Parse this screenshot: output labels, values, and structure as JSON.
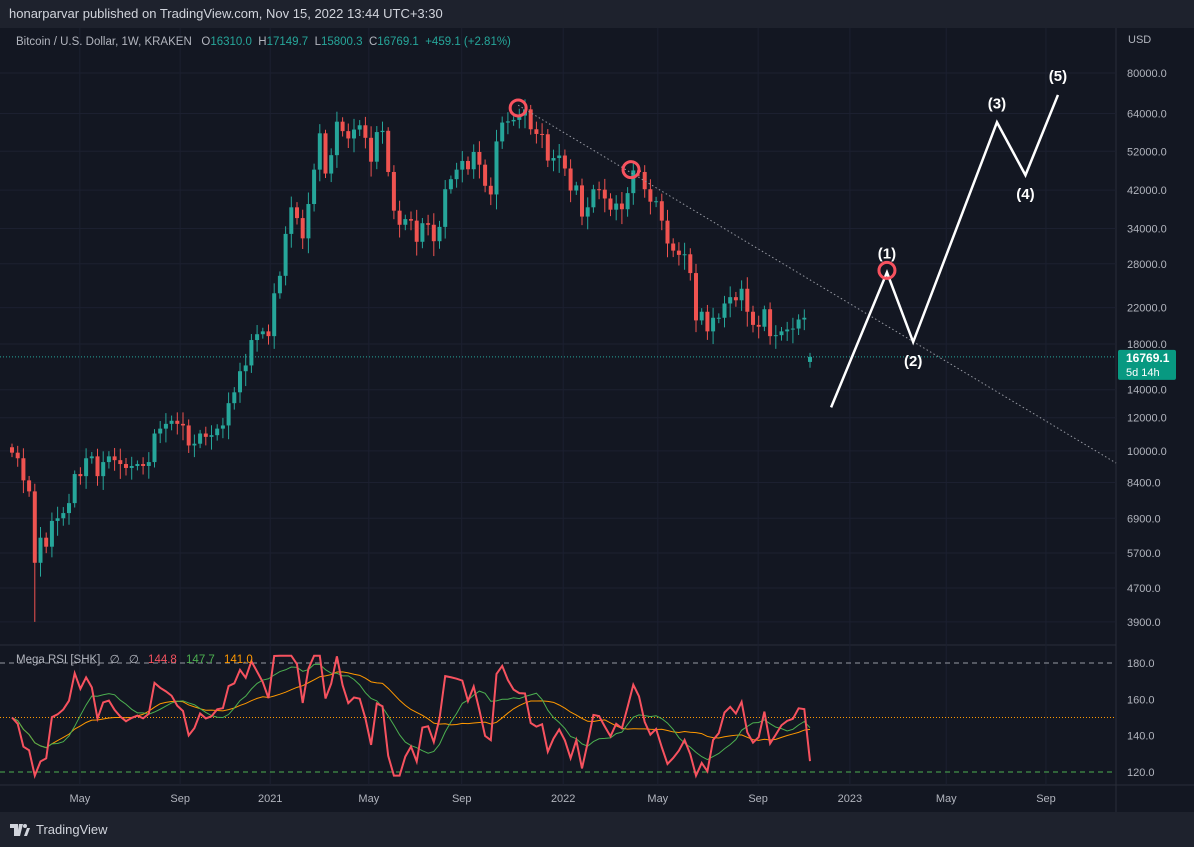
{
  "header": {
    "published": "honarparvar published on TradingView.com, Nov 15, 2022 13:44 UTC+3:30"
  },
  "legend": {
    "symbol": "Bitcoin / U.S. Dollar, 1W, KRAKEN",
    "o_label": "O",
    "open": "16310.0",
    "h_label": "H",
    "high": "17149.7",
    "l_label": "L",
    "low": "15800.3",
    "c_label": "C",
    "close": "16769.1",
    "change": "+459.1 (+2.81%)"
  },
  "rsi_legend": {
    "name": "Mega RSI [SHK]",
    "p1": "∅",
    "p2": "∅",
    "v1": "144.8",
    "v2": "147.7",
    "v3": "141.0"
  },
  "price_axis": {
    "currency": "USD",
    "last_price": "16769.1",
    "countdown": "5d 14h"
  },
  "footer": {
    "brand": "TradingView"
  },
  "colors": {
    "up": "#26a69a",
    "down": "#ef5350",
    "rsi": "#f7525f",
    "signal": "#4caf50",
    "slow": "#ff9800",
    "accent": "#089981"
  },
  "chart_data": {
    "type": "candlestick",
    "scale": "log",
    "ylim": [
      3700,
      90000
    ],
    "first_open": 10200,
    "closes": [
      9900,
      9600,
      8500,
      8000,
      5400,
      6200,
      5900,
      6800,
      6900,
      7100,
      7500,
      8800,
      8700,
      9600,
      9700,
      8700,
      9400,
      9700,
      9500,
      9300,
      9100,
      9200,
      9300,
      9200,
      9400,
      11000,
      11300,
      11600,
      11800,
      11600,
      11500,
      10300,
      10400,
      11000,
      10800,
      10900,
      11300,
      11500,
      13000,
      13800,
      15500,
      16000,
      18400,
      19000,
      19300,
      18800,
      23800,
      26200,
      33000,
      38200,
      36000,
      32200,
      38900,
      47000,
      57400,
      46000,
      50900,
      61200,
      58100,
      55800,
      58600,
      60000,
      56000,
      49100,
      57800,
      58200,
      46400,
      37500,
      34700,
      35800,
      35500,
      31600,
      35000,
      34700,
      31700,
      34300,
      42200,
      44600,
      47000,
      49300,
      47100,
      51800,
      48300,
      43000,
      41000,
      54900,
      60900,
      61300,
      61800,
      63300,
      65500,
      58700,
      57200,
      57100,
      49400,
      50100,
      50800,
      47300,
      41900,
      43100,
      36300,
      38200,
      42200,
      42100,
      40100,
      37700,
      39000,
      37800,
      41300,
      46800,
      46400,
      42200,
      39400,
      39500,
      35500,
      31300,
      30100,
      29400,
      29500,
      26600,
      20500,
      21500,
      19300,
      20800,
      20800,
      22500,
      23300,
      22900,
      24400,
      21500,
      20000,
      19800,
      21800,
      18800,
      18900,
      19300,
      19500,
      19600,
      20600,
      20800,
      16310
    ],
    "last_bar": {
      "open": 16310,
      "high": 17149.7,
      "low": 15800.3,
      "close": 16769.1
    },
    "price_ticks": [
      "80000.0",
      "64000.0",
      "52000.0",
      "42000.0",
      "34000.0",
      "28000.0",
      "22000.0",
      "18000.0",
      "14000.0",
      "12000.0",
      "10000.0",
      "8400.0",
      "6900.0",
      "5700.0",
      "4700.0",
      "3900.0"
    ],
    "time_ticks": [
      {
        "label": "May",
        "week": 11.9
      },
      {
        "label": "Sep",
        "week": 29.5
      },
      {
        "label": "2021",
        "week": 45.3
      },
      {
        "label": "May",
        "week": 62.6
      },
      {
        "label": "Sep",
        "week": 78.9
      },
      {
        "label": "2022",
        "week": 96.7
      },
      {
        "label": "May",
        "week": 113.3
      },
      {
        "label": "Sep",
        "week": 130.9
      },
      {
        "label": "2023",
        "week": 147
      },
      {
        "label": "May",
        "week": 163.9
      },
      {
        "label": "Sep",
        "week": 181.4
      }
    ],
    "trendline": [
      {
        "week": 88.8,
        "price": 67000
      },
      {
        "week": 193.7,
        "price": 9350
      }
    ],
    "circles": [
      {
        "week": 88.8,
        "price": 66000
      },
      {
        "week": 108.6,
        "price": 47000
      },
      {
        "week": 153.5,
        "price": 27000
      }
    ],
    "waves": [
      {
        "label": "",
        "week": 143.7,
        "price": 12700
      },
      {
        "label": "(1)",
        "week": 153.5,
        "price": 26700
      },
      {
        "label": "(2)",
        "week": 158.1,
        "price": 18200
      },
      {
        "label": "(3)",
        "week": 172.8,
        "price": 61000
      },
      {
        "label": "(4)",
        "week": 177.8,
        "price": 45600
      },
      {
        "label": "(5)",
        "week": 183.5,
        "price": 70900
      }
    ],
    "rsi": {
      "levels": [
        "180.0",
        "160.0",
        "140.0",
        "120.0"
      ],
      "upper": 180,
      "mid": 150,
      "lower": 120
    }
  }
}
